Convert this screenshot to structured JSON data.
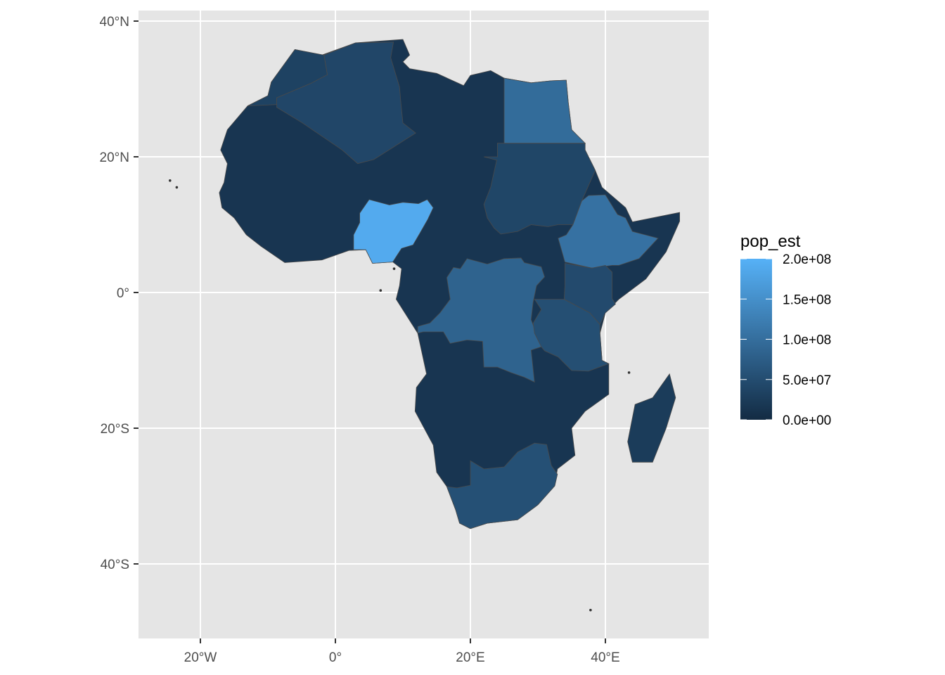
{
  "chart_data": {
    "type": "choropleth",
    "title": "",
    "fill_variable": "pop_est",
    "xlim": [
      -29,
      55
    ],
    "ylim": [
      -51,
      41
    ],
    "x_ticks": [
      {
        "value": -20,
        "label": "20°W"
      },
      {
        "value": 0,
        "label": "0°"
      },
      {
        "value": 20,
        "label": "20°E"
      },
      {
        "value": 40,
        "label": "40°E"
      }
    ],
    "y_ticks": [
      {
        "value": 40,
        "label": "40°N"
      },
      {
        "value": 20,
        "label": "20°N"
      },
      {
        "value": 0,
        "label": "0°"
      },
      {
        "value": -20,
        "label": "20°S"
      },
      {
        "value": -40,
        "label": "40°S"
      }
    ],
    "grid": true,
    "legend": {
      "title": "pop_est",
      "placement": "right",
      "low_color": "#132B43",
      "high_color": "#56B1F7",
      "range": [
        0,
        200000000
      ],
      "breaks": [
        {
          "value": 200000000,
          "label": "2.0e+08"
        },
        {
          "value": 150000000,
          "label": "1.5e+08"
        },
        {
          "value": 100000000,
          "label": "1.0e+08"
        },
        {
          "value": 50000000,
          "label": "5.0e+07"
        },
        {
          "value": 0,
          "label": "0.0e+00"
        }
      ]
    },
    "default_pop": 15000000,
    "regions": [
      {
        "name": "Algeria",
        "pop_est": 41000000
      },
      {
        "name": "Morocco",
        "pop_est": 34000000
      },
      {
        "name": "Sudan",
        "pop_est": 40000000
      },
      {
        "name": "Egypt",
        "pop_est": 97000000
      },
      {
        "name": "Ethiopia",
        "pop_est": 105000000
      },
      {
        "name": "Nigeria",
        "pop_est": 190000000
      },
      {
        "name": "Dem. Rep. Congo",
        "pop_est": 83000000
      },
      {
        "name": "Tanzania",
        "pop_est": 53000000
      },
      {
        "name": "Kenya",
        "pop_est": 47000000
      },
      {
        "name": "South Africa",
        "pop_est": 55000000
      },
      {
        "name": "Madagascar",
        "pop_est": 25000000
      }
    ]
  }
}
